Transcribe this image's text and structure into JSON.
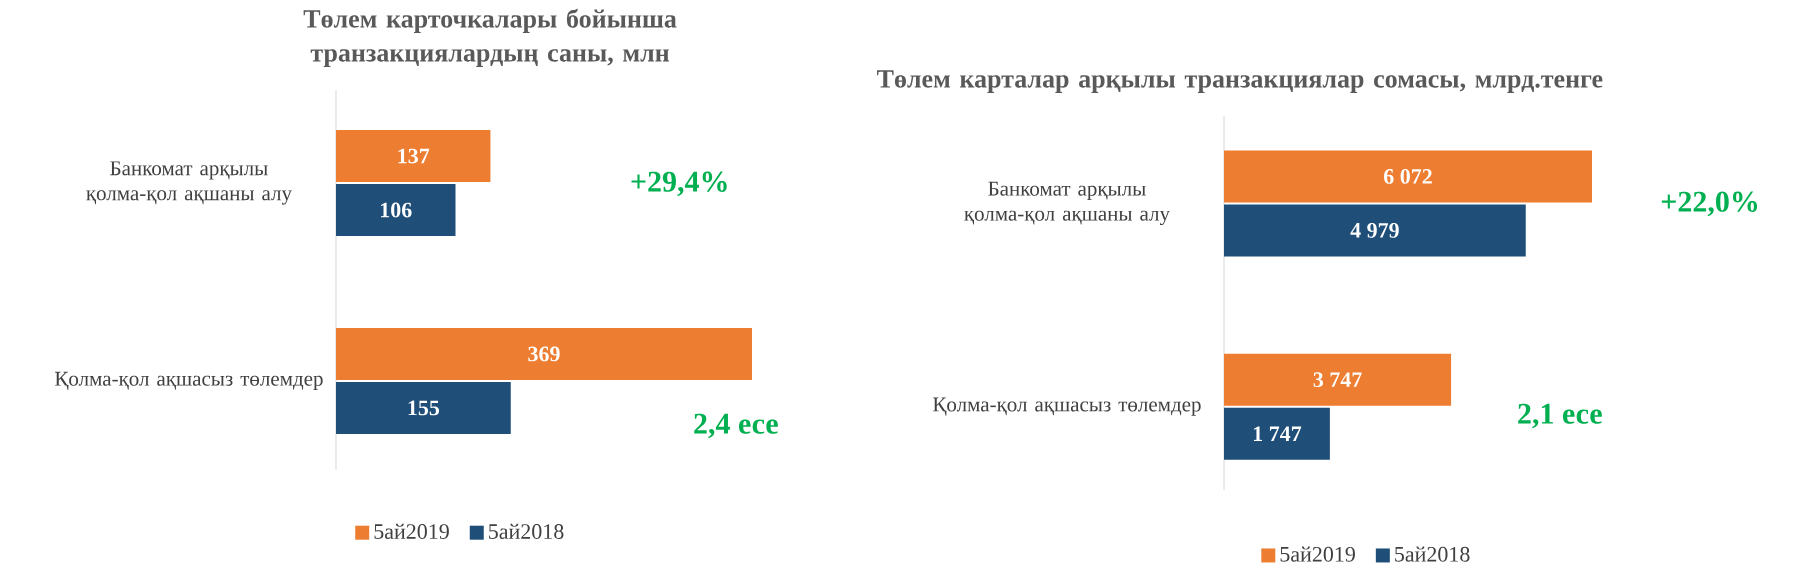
{
  "chart_data": [
    {
      "type": "bar",
      "orientation": "horizontal",
      "title": "Төлем карточкалары бойынша транзакциялардың саны, млн",
      "categories": [
        "Банкомат арқылы қолма-қол ақшаны алу",
        "Қолма-қол ақшасыз төлемдер"
      ],
      "series": [
        {
          "name": "5ай2019",
          "color": "#ed7d31",
          "values": [
            137,
            369
          ]
        },
        {
          "name": "5ай2018",
          "color": "#1f4e79",
          "values": [
            106,
            155
          ]
        }
      ],
      "data_labels": true,
      "legend": "bottom",
      "annotations": [
        "+29,4%",
        "2,4 есе"
      ]
    },
    {
      "type": "bar",
      "orientation": "horizontal",
      "title": "Төлем карталар арқылы транзакциялар сомасы, млрд.тенге",
      "categories": [
        "Банкомат арқылы қолма-қол ақшаны алу",
        "Қолма-қол ақшасыз төлемдер"
      ],
      "series": [
        {
          "name": "5ай2019",
          "color": "#ed7d31",
          "values": [
            6072,
            3747
          ],
          "value_labels": [
            "6 072",
            "3 747"
          ]
        },
        {
          "name": "5ай2018",
          "color": "#1f4e79",
          "values": [
            4979,
            1747
          ],
          "value_labels": [
            "4 979",
            "1 747"
          ]
        }
      ],
      "legend": "bottom",
      "annotations": [
        "+22,0%",
        "2,1 есе"
      ]
    }
  ]
}
